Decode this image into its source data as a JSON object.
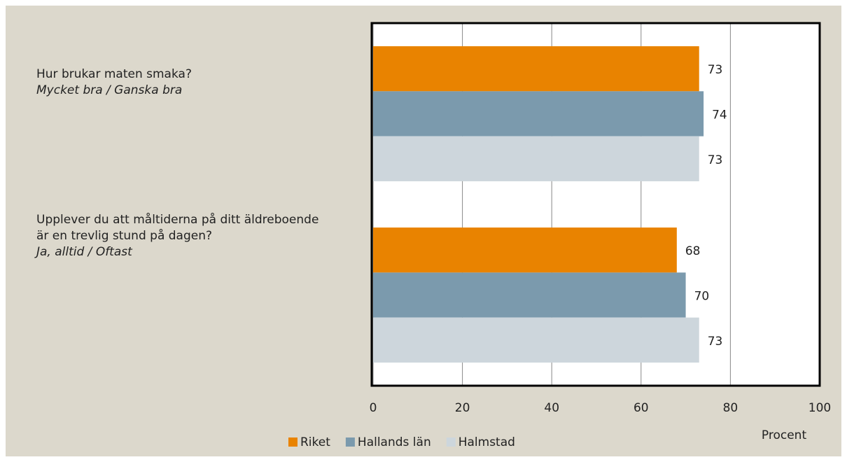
{
  "chart_data": {
    "type": "hbar",
    "categories": [
      "Hur brukar maten smaka?",
      "Upplever du att måltiderna på ditt äldreboende är en trevlig stund på dagen?"
    ],
    "category_notes": [
      "Mycket bra / Ganska bra",
      "Ja, alltid / Oftast"
    ],
    "series": [
      {
        "name": "Riket",
        "color": "#e98300",
        "values": [
          73,
          68
        ]
      },
      {
        "name": "Hallands län",
        "color": "#7b9aad",
        "values": [
          74,
          70
        ]
      },
      {
        "name": "Halmstad",
        "color": "#cdd6dc",
        "values": [
          73,
          73
        ]
      }
    ],
    "xlim": [
      0,
      100
    ],
    "xticks": [
      0,
      20,
      40,
      60,
      80,
      100
    ],
    "xlabel": "Procent",
    "grid": true,
    "legend": "bottom"
  }
}
